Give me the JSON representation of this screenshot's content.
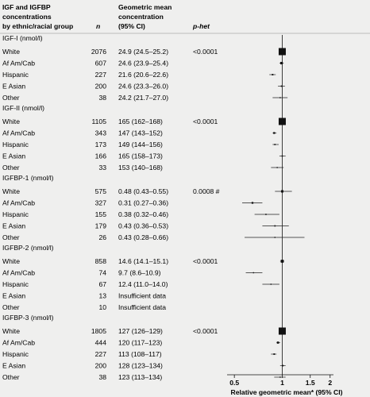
{
  "header": {
    "group_label_lines": [
      "IGF and IGFBP",
      "concentrations",
      "by ethnic/racial group"
    ],
    "n_label": "n",
    "geomean_label_lines": [
      "Geometric mean",
      "concentration",
      "(95% CI)"
    ],
    "phet_label": "p-het"
  },
  "chart_data": {
    "type": "forest",
    "xlabel": "Relative geometric mean* (95% CI)",
    "xscale": "log",
    "xlim": [
      0.45,
      2.1
    ],
    "xticks": [
      "0.5",
      "1",
      "1.5",
      "2"
    ],
    "reference_line": 1,
    "panels": [
      {
        "title": "IGF-I (nmol/l)",
        "p_het": "<0.0001",
        "rows": [
          {
            "group": "White",
            "n": "2076",
            "ci_text": "24.9 (24.5–25.2)",
            "rel": 1.0,
            "lo": null,
            "hi": null,
            "reference": true
          },
          {
            "group": "Af Am/Cab",
            "n": "607",
            "ci_text": "24.6 (23.9–25.4)",
            "rel": 0.99,
            "lo": 0.96,
            "hi": 1.02
          },
          {
            "group": "Hispanic",
            "n": "227",
            "ci_text": "21.6 (20.6–22.6)",
            "rel": 0.87,
            "lo": 0.83,
            "hi": 0.91
          },
          {
            "group": "E Asian",
            "n": "200",
            "ci_text": "24.6 (23.3–26.0)",
            "rel": 0.99,
            "lo": 0.94,
            "hi": 1.04
          },
          {
            "group": "Other",
            "n": "38",
            "ci_text": "24.2 (21.7–27.0)",
            "rel": 0.97,
            "lo": 0.87,
            "hi": 1.08
          }
        ]
      },
      {
        "title": "IGF-II (nmol/l)",
        "p_het": "<0.0001",
        "rows": [
          {
            "group": "White",
            "n": "1105",
            "ci_text": "165 (162–168)",
            "rel": 1.0,
            "lo": null,
            "hi": null,
            "reference": true
          },
          {
            "group": "Af Am/Cab",
            "n": "343",
            "ci_text": "147 (143–152)",
            "rel": 0.89,
            "lo": 0.87,
            "hi": 0.92
          },
          {
            "group": "Hispanic",
            "n": "173",
            "ci_text": "149 (144–156)",
            "rel": 0.9,
            "lo": 0.87,
            "hi": 0.95
          },
          {
            "group": "E Asian",
            "n": "166",
            "ci_text": "165 (158–173)",
            "rel": 1.0,
            "lo": 0.96,
            "hi": 1.05
          },
          {
            "group": "Other",
            "n": "33",
            "ci_text": "153 (140–168)",
            "rel": 0.93,
            "lo": 0.85,
            "hi": 1.02
          }
        ]
      },
      {
        "title": "IGFBP-1 (nmol/l)",
        "p_het": "0.0008 #",
        "rows": [
          {
            "group": "White",
            "n": "575",
            "ci_text": "0.48 (0.43–0.55)",
            "rel": 1.0,
            "lo": 0.9,
            "hi": 1.15,
            "reference": false
          },
          {
            "group": "Af Am/Cab",
            "n": "327",
            "ci_text": "0.31 (0.27–0.36)",
            "rel": 0.65,
            "lo": 0.56,
            "hi": 0.75
          },
          {
            "group": "Hispanic",
            "n": "155",
            "ci_text": "0.38 (0.32–0.46)",
            "rel": 0.79,
            "lo": 0.67,
            "hi": 0.96
          },
          {
            "group": "E Asian",
            "n": "179",
            "ci_text": "0.43 (0.36–0.53)",
            "rel": 0.9,
            "lo": 0.75,
            "hi": 1.1
          },
          {
            "group": "Other",
            "n": "26",
            "ci_text": "0.43 (0.28–0.66)",
            "rel": 0.9,
            "lo": 0.58,
            "hi": 1.38
          }
        ]
      },
      {
        "title": "IGFBP-2 (nmol/l)",
        "p_het": "<0.0001",
        "rows": [
          {
            "group": "White",
            "n": "858",
            "ci_text": "14.6 (14.1–15.1)",
            "rel": 1.0,
            "lo": 0.97,
            "hi": 1.03,
            "reference": false
          },
          {
            "group": "Af Am/Cab",
            "n": "74",
            "ci_text": "9.7 (8.6–10.9)",
            "rel": 0.66,
            "lo": 0.59,
            "hi": 0.75
          },
          {
            "group": "Hispanic",
            "n": "67",
            "ci_text": "12.4 (11.0–14.0)",
            "rel": 0.85,
            "lo": 0.75,
            "hi": 0.96
          },
          {
            "group": "E Asian",
            "n": "13",
            "ci_text": "Insufficient data",
            "rel": null,
            "lo": null,
            "hi": null
          },
          {
            "group": "Other",
            "n": "10",
            "ci_text": "Insufficient data",
            "rel": null,
            "lo": null,
            "hi": null
          }
        ]
      },
      {
        "title": "IGFBP-3 (nmol/l)",
        "p_het": "<0.0001",
        "rows": [
          {
            "group": "White",
            "n": "1805",
            "ci_text": "127 (126–129)",
            "rel": 1.0,
            "lo": null,
            "hi": null,
            "reference": true
          },
          {
            "group": "Af Am/Cab",
            "n": "444",
            "ci_text": "120 (117–123)",
            "rel": 0.94,
            "lo": 0.92,
            "hi": 0.97
          },
          {
            "group": "Hispanic",
            "n": "227",
            "ci_text": "113 (108–117)",
            "rel": 0.89,
            "lo": 0.85,
            "hi": 0.92
          },
          {
            "group": "E Asian",
            "n": "200",
            "ci_text": "128 (123–134)",
            "rel": 1.01,
            "lo": 0.97,
            "hi": 1.05
          },
          {
            "group": "Other",
            "n": "38",
            "ci_text": "123 (113–134)",
            "rel": 0.97,
            "lo": 0.89,
            "hi": 1.05
          }
        ]
      }
    ]
  }
}
